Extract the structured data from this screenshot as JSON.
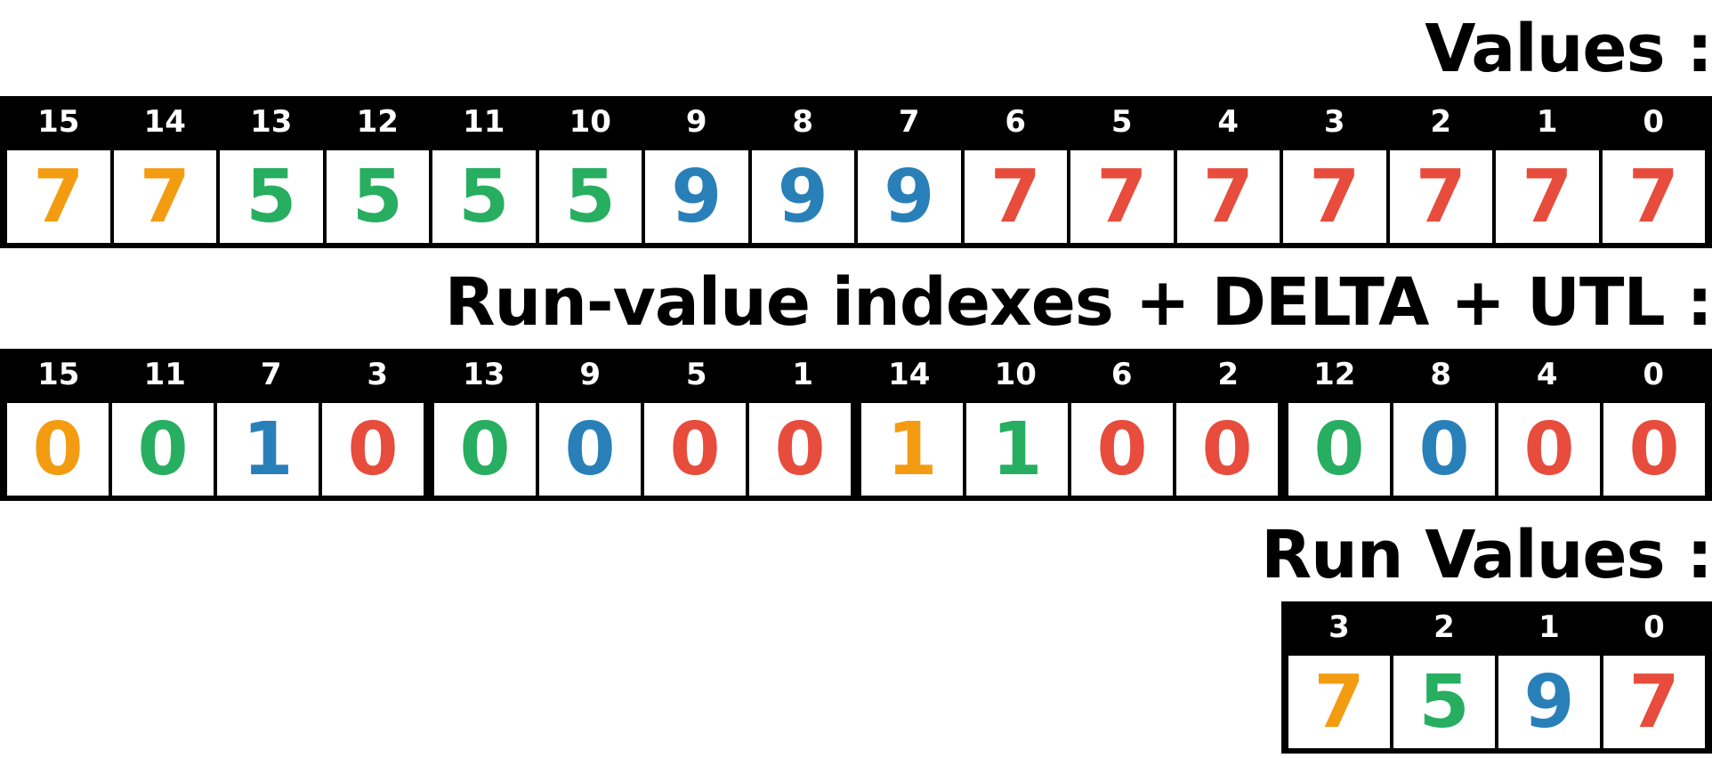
{
  "colors": {
    "orange": "#f39c12",
    "green": "#27ae60",
    "blue": "#2980b9",
    "red": "#e74c3c"
  },
  "values": {
    "title": "Values :",
    "indexes": [
      "15",
      "14",
      "13",
      "12",
      "11",
      "10",
      "9",
      "8",
      "7",
      "6",
      "5",
      "4",
      "3",
      "2",
      "1",
      "0"
    ],
    "cells": [
      {
        "v": "7",
        "c": "orange"
      },
      {
        "v": "7",
        "c": "orange"
      },
      {
        "v": "5",
        "c": "green"
      },
      {
        "v": "5",
        "c": "green"
      },
      {
        "v": "5",
        "c": "green"
      },
      {
        "v": "5",
        "c": "green"
      },
      {
        "v": "9",
        "c": "blue"
      },
      {
        "v": "9",
        "c": "blue"
      },
      {
        "v": "9",
        "c": "blue"
      },
      {
        "v": "7",
        "c": "red"
      },
      {
        "v": "7",
        "c": "red"
      },
      {
        "v": "7",
        "c": "red"
      },
      {
        "v": "7",
        "c": "red"
      },
      {
        "v": "7",
        "c": "red"
      },
      {
        "v": "7",
        "c": "red"
      },
      {
        "v": "7",
        "c": "red"
      }
    ]
  },
  "run_value_indexes": {
    "title": "Run-value indexes + DELTA + UTL :",
    "indexes": [
      "15",
      "11",
      "7",
      "3",
      "13",
      "9",
      "5",
      "1",
      "14",
      "10",
      "6",
      "2",
      "12",
      "8",
      "4",
      "0"
    ],
    "cells": [
      {
        "v": "0",
        "c": "orange"
      },
      {
        "v": "0",
        "c": "green"
      },
      {
        "v": "1",
        "c": "blue"
      },
      {
        "v": "0",
        "c": "red"
      },
      {
        "v": "0",
        "c": "green"
      },
      {
        "v": "0",
        "c": "blue"
      },
      {
        "v": "0",
        "c": "red"
      },
      {
        "v": "0",
        "c": "red"
      },
      {
        "v": "1",
        "c": "orange"
      },
      {
        "v": "1",
        "c": "green"
      },
      {
        "v": "0",
        "c": "red"
      },
      {
        "v": "0",
        "c": "red"
      },
      {
        "v": "0",
        "c": "green"
      },
      {
        "v": "0",
        "c": "blue"
      },
      {
        "v": "0",
        "c": "red"
      },
      {
        "v": "0",
        "c": "red"
      }
    ]
  },
  "run_values": {
    "title": "Run Values :",
    "indexes": [
      "3",
      "2",
      "1",
      "0"
    ],
    "cells": [
      {
        "v": "7",
        "c": "orange"
      },
      {
        "v": "5",
        "c": "green"
      },
      {
        "v": "9",
        "c": "blue"
      },
      {
        "v": "7",
        "c": "red"
      }
    ]
  }
}
